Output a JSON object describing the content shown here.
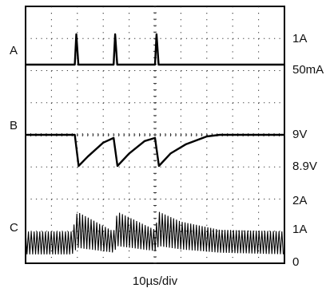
{
  "chart_data": {
    "type": "line",
    "title": "",
    "xlabel": "10µs/div",
    "grid": true,
    "divisions": {
      "x": 10,
      "y": 8
    },
    "time_per_div_us": 10,
    "channels": [
      {
        "id": "A",
        "left_label": "A",
        "scale_labels": [
          {
            "text": "1A",
            "value": 1
          },
          {
            "text": "50mA",
            "value": 0.05
          }
        ],
        "description_points": [
          [
            0,
            0.05
          ],
          [
            19,
            0.05
          ],
          [
            19.6,
            1.0
          ],
          [
            20.4,
            0.05
          ],
          [
            34,
            0.05
          ],
          [
            34.6,
            1.0
          ],
          [
            35.4,
            0.05
          ],
          [
            50,
            0.05
          ],
          [
            50.6,
            1.0
          ],
          [
            51.4,
            0.05
          ],
          [
            100,
            0.05
          ]
        ]
      },
      {
        "id": "B",
        "left_label": "B",
        "scale_labels": [
          {
            "text": "9V",
            "value": 9.0
          },
          {
            "text": "8.9V",
            "value": 8.9
          }
        ],
        "description_points": [
          [
            0,
            9.0
          ],
          [
            19,
            9.0
          ],
          [
            20.5,
            8.9
          ],
          [
            24,
            8.93
          ],
          [
            30,
            8.975
          ],
          [
            34,
            8.99
          ],
          [
            35.5,
            8.9
          ],
          [
            40,
            8.94
          ],
          [
            46,
            8.98
          ],
          [
            50,
            8.99
          ],
          [
            51.5,
            8.9
          ],
          [
            56,
            8.94
          ],
          [
            62,
            8.97
          ],
          [
            70,
            8.995
          ],
          [
            75,
            9.0
          ],
          [
            100,
            9.0
          ]
        ]
      },
      {
        "id": "C",
        "left_label": "C",
        "scale_labels": [
          {
            "text": "2A",
            "value": 2
          },
          {
            "text": "1A",
            "value": 1
          },
          {
            "text": "0",
            "value": 0
          }
        ],
        "ripple_envelope": [
          [
            0,
            0.25,
            0.95
          ],
          [
            18,
            0.25,
            0.95
          ],
          [
            20,
            0.45,
            1.55
          ],
          [
            34,
            0.3,
            0.95
          ],
          [
            35.5,
            0.5,
            1.55
          ],
          [
            50,
            0.35,
            1.0
          ],
          [
            51.5,
            0.5,
            1.55
          ],
          [
            60,
            0.4,
            1.25
          ],
          [
            75,
            0.3,
            1.0
          ],
          [
            100,
            0.25,
            0.95
          ]
        ]
      }
    ]
  }
}
